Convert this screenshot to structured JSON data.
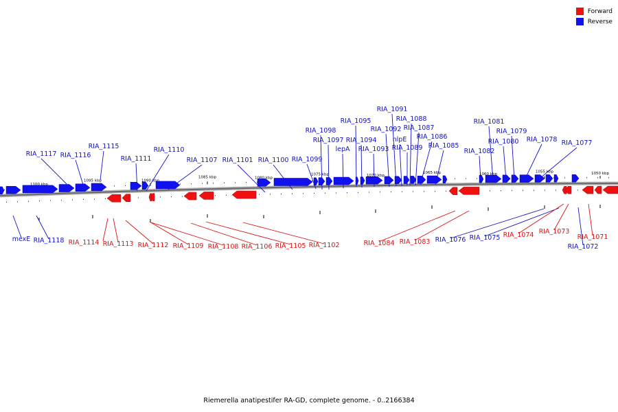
{
  "legend": {
    "forward": {
      "label": "Forward",
      "color": "#ee1111"
    },
    "reverse": {
      "label": "Reverse",
      "color": "#1111ee"
    }
  },
  "caption": "Riemerella anatipestifer RA-GD, complete genome. - 0..2166384",
  "ticks": [
    "1100 kbp",
    "1095 kbp",
    "1090 kbp",
    "1085 kbp",
    "1080 kbp",
    "1075 kbp",
    "1070 kbp",
    "1065 kbp",
    "1060 kbp",
    "1055 kbp",
    "1050 kbp"
  ],
  "reverse_labels": [
    "RIA_1117",
    "RIA_1116",
    "RIA_1115",
    "RIA_1111",
    "RIA_1110",
    "RIA_1107",
    "RIA_1101",
    "RIA_1100",
    "RIA_1099",
    "RIA_1098",
    "RIA_1097",
    "lepA",
    "RIA_1095",
    "RIA_1094",
    "RIA_1093",
    "RIA_1092",
    "RIA_1091",
    "nlpE",
    "RIA_1088",
    "RIA_1089",
    "RIA_1087",
    "RIA_1086",
    "RIA_1085",
    "RIA_1082",
    "RIA_1081",
    "RIA_1080",
    "RIA_1079",
    "RIA_1078",
    "RIA_1077",
    "mexE",
    "RIA_1118",
    "RIA_1076",
    "RIA_1075",
    "RIA_1072"
  ],
  "forward_labels": [
    "RIA_1114",
    "RIA_1113",
    "RIA_1112",
    "RIA_1109",
    "RIA_1108",
    "RIA_1106",
    "RIA_1105",
    "RIA_1102",
    "RIA_1084",
    "RIA_1083",
    "RIA_1074",
    "RIA_1073",
    "RIA_1071"
  ]
}
